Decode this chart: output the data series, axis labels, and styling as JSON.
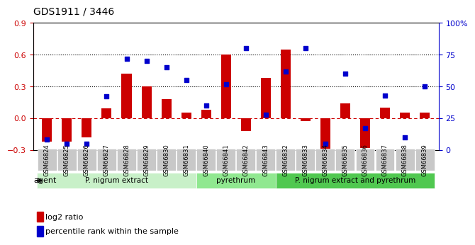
{
  "title": "GDS1911 / 3446",
  "samples": [
    "GSM66824",
    "GSM66825",
    "GSM66826",
    "GSM66827",
    "GSM66828",
    "GSM66829",
    "GSM66830",
    "GSM66831",
    "GSM66840",
    "GSM66841",
    "GSM66842",
    "GSM66843",
    "GSM66832",
    "GSM66833",
    "GSM66834",
    "GSM66835",
    "GSM66836",
    "GSM66837",
    "GSM66838",
    "GSM66839"
  ],
  "log2_ratio": [
    -0.22,
    -0.22,
    -0.18,
    0.09,
    0.42,
    0.3,
    0.18,
    0.05,
    0.08,
    0.6,
    -0.12,
    0.38,
    0.65,
    -0.03,
    -0.35,
    0.14,
    -0.28,
    0.1,
    0.05,
    0.05
  ],
  "pct_rank": [
    8,
    5,
    5,
    42,
    72,
    70,
    65,
    55,
    35,
    52,
    80,
    28,
    62,
    80,
    5,
    60,
    17,
    43,
    10,
    50
  ],
  "groups": [
    {
      "label": "P. nigrum extract",
      "start": 0,
      "end": 8,
      "color": "#c8f0c8"
    },
    {
      "label": "pyrethrum",
      "start": 8,
      "end": 12,
      "color": "#90e890"
    },
    {
      "label": "P. nigrum extract and pyrethrum",
      "start": 12,
      "end": 20,
      "color": "#50c850"
    }
  ],
  "bar_color": "#cc0000",
  "dot_color": "#0000cc",
  "ylim_left": [
    -0.3,
    0.9
  ],
  "ylim_right": [
    0,
    100
  ],
  "yticks_left": [
    -0.3,
    0.0,
    0.3,
    0.6,
    0.9
  ],
  "yticks_right": [
    0,
    25,
    50,
    75,
    100
  ],
  "hlines": [
    0.3,
    0.6
  ],
  "background_color": "#ffffff",
  "grid_color": "#000000"
}
